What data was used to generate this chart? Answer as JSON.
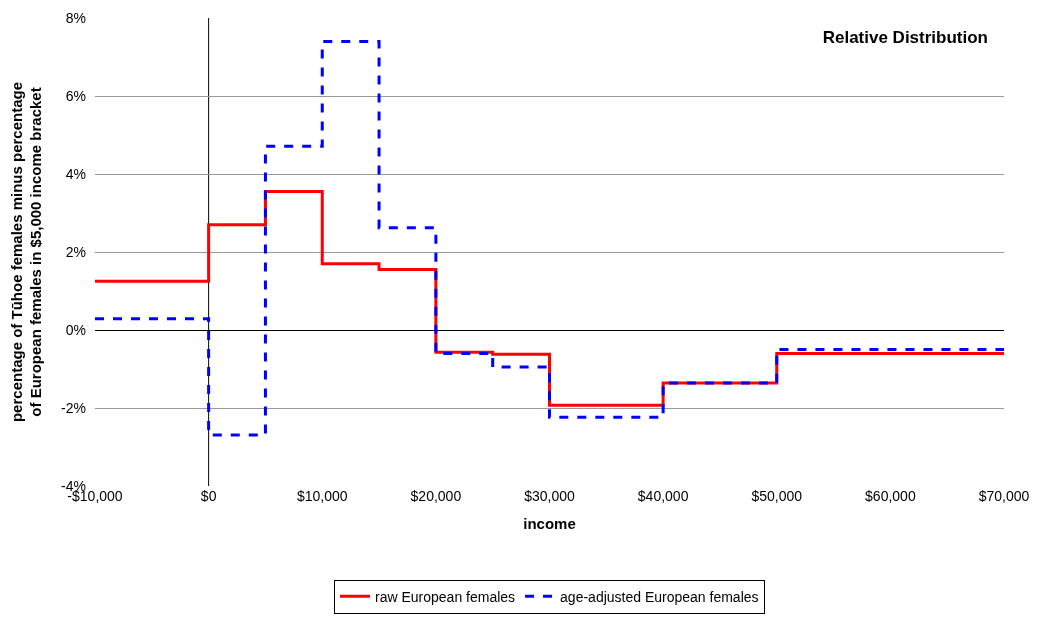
{
  "chart_data": {
    "type": "step",
    "title": "Relative Distribution",
    "xlabel": "income",
    "ylabel": "percentage of Tūhoe females minus percentage\nof European females in $5,000 income bracket",
    "x": [
      -10000,
      0,
      5000,
      10000,
      15000,
      20000,
      25000,
      30000,
      40000,
      50000,
      70000
    ],
    "series": [
      {
        "name": "raw European females",
        "color": "#ff0000",
        "line_style": "solid",
        "values": [
          1.25,
          2.7,
          3.55,
          1.7,
          1.55,
          -0.57,
          -0.62,
          -1.93,
          -1.36,
          -0.6,
          -0.6
        ]
      },
      {
        "name": "age-adjusted European females",
        "color": "#0000ff",
        "line_style": "dashed",
        "values": [
          0.29,
          -2.69,
          4.71,
          7.4,
          2.62,
          -0.6,
          -0.95,
          -2.24,
          -1.36,
          -0.5,
          -0.5
        ]
      }
    ],
    "xlim": [
      -10000,
      70000
    ],
    "xticks": [
      {
        "value": -10000,
        "label": "-$10,000"
      },
      {
        "value": 0,
        "label": "$0"
      },
      {
        "value": 10000,
        "label": "$10,000"
      },
      {
        "value": 20000,
        "label": "$20,000"
      },
      {
        "value": 30000,
        "label": "$30,000"
      },
      {
        "value": 40000,
        "label": "$40,000"
      },
      {
        "value": 50000,
        "label": "$50,000"
      },
      {
        "value": 60000,
        "label": "$60,000"
      },
      {
        "value": 70000,
        "label": "$70,000"
      }
    ],
    "ylim": [
      -4,
      8
    ],
    "yticks": [
      {
        "value": -4,
        "label": "-4%"
      },
      {
        "value": -2,
        "label": "-2%"
      },
      {
        "value": 0,
        "label": "0%"
      },
      {
        "value": 2,
        "label": "2%"
      },
      {
        "value": 4,
        "label": "4%"
      },
      {
        "value": 6,
        "label": "6%"
      },
      {
        "value": 8,
        "label": "8%"
      }
    ],
    "ref_lines": [
      {
        "axis": "x",
        "value": 0,
        "color": "#000000"
      }
    ],
    "grid": "y",
    "legend": "bottom"
  }
}
